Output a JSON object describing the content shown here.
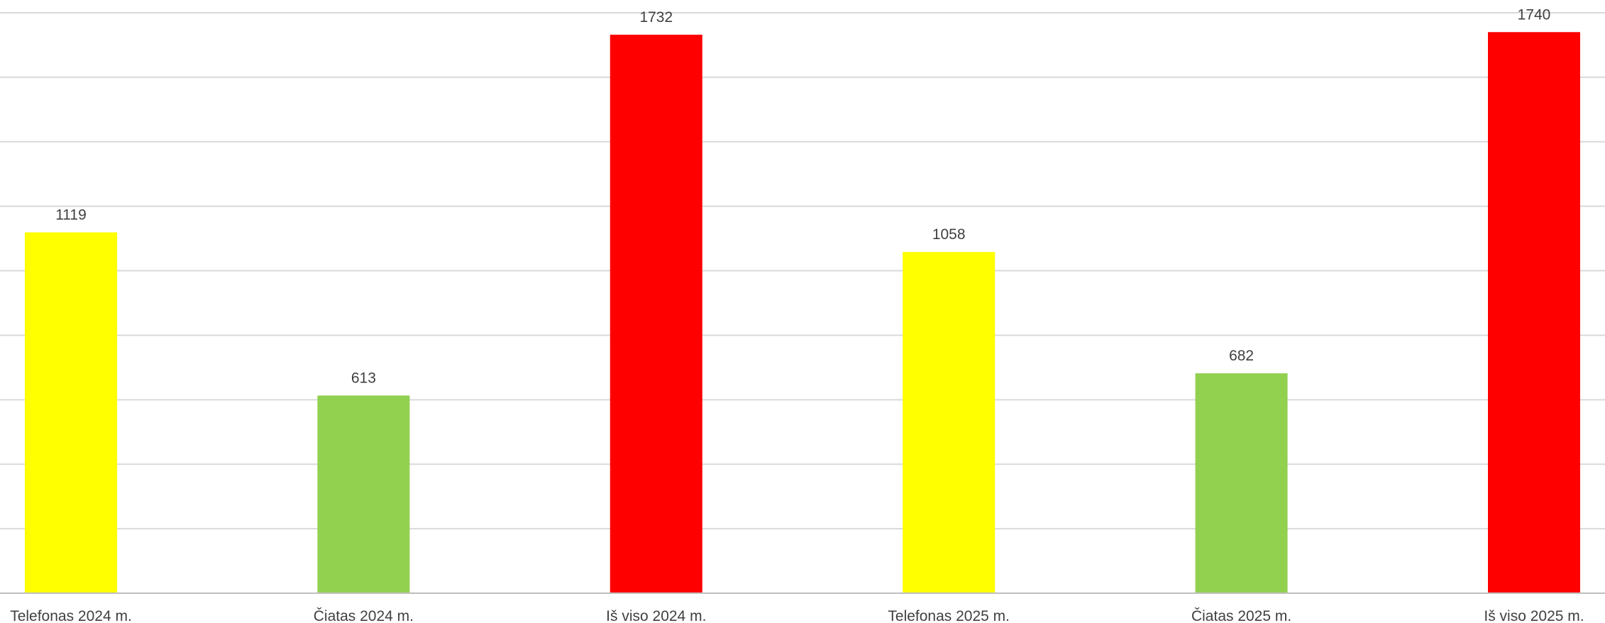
{
  "chart_data": {
    "type": "bar",
    "categories": [
      "Telefonas 2024 m.",
      "Čiatas 2024 m.",
      "Iš viso 2024 m.",
      "Telefonas 2025 m.",
      "Čiatas 2025 m.",
      "Iš viso 2025 m."
    ],
    "values": [
      1119,
      613,
      1732,
      1058,
      682,
      1740
    ],
    "colors": [
      "#ffff00",
      "#92d050",
      "#ff0000",
      "#ffff00",
      "#92d050",
      "#ff0000"
    ],
    "ylim": [
      0,
      1800
    ],
    "gridlines": true,
    "data_labels": true,
    "title": "",
    "xlabel": "",
    "ylabel": ""
  }
}
